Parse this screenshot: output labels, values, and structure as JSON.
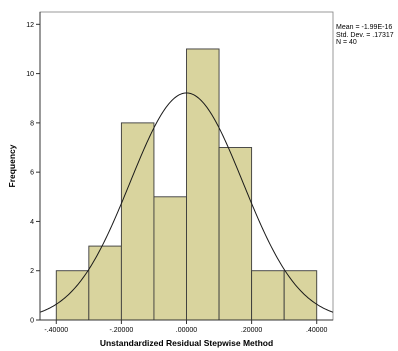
{
  "chart_data": {
    "type": "bar",
    "subtype": "histogram",
    "xlabel": "Unstandardized Residual Stepwise Method",
    "ylabel": "Frequency",
    "xlim": [
      -0.45,
      0.45
    ],
    "ylim": [
      0,
      12.5
    ],
    "x_ticks": [
      -0.4,
      -0.2,
      0.0,
      0.2,
      0.4
    ],
    "x_tick_labels": [
      "-.40000",
      "-.20000",
      ".00000",
      ".20000",
      ".40000"
    ],
    "y_ticks": [
      0,
      2,
      4,
      6,
      8,
      10,
      12
    ],
    "y_tick_labels": [
      "0",
      "2",
      "4",
      "6",
      "8",
      "10",
      "12"
    ],
    "bin_edges": [
      -0.4,
      -0.3,
      -0.2,
      -0.1,
      0.0,
      0.1,
      0.2,
      0.3,
      0.4
    ],
    "values": [
      2,
      3,
      8,
      5,
      11,
      7,
      2,
      2
    ],
    "normal_curve": {
      "mean": 0.0,
      "std": 0.17317,
      "n": 40,
      "bin_width": 0.1
    },
    "stats": {
      "mean_label": "Mean = -1.99E-16",
      "std_label": "Std. Dev. = .17317",
      "n_label": "N = 40"
    },
    "grid": false,
    "colors": {
      "bar_fill": "#d9d49e",
      "bar_stroke": "#3a3a3a",
      "curve": "#1a1a1a",
      "axis": "#333333"
    }
  }
}
